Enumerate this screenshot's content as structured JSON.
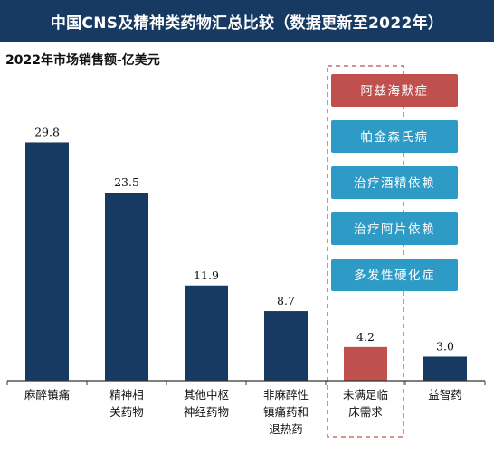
{
  "title": "中国CNS及精神类药物汇总比较（数据更新至2022年）",
  "subtitle": "2022年市场销售额-亿美元",
  "colors": {
    "header_bg": "#173a62",
    "bar": "#173a62",
    "highlight_bar": "#c0504d",
    "box_red": "#c0504d",
    "box_blue": "#2e9ac6",
    "dashed_border": "#c0504d",
    "axis": "#333333"
  },
  "chart_data": {
    "type": "bar",
    "title": "中国CNS及精神类药物汇总比较（数据更新至2022年）",
    "ylabel": "2022年市场销售额-亿美元",
    "categories": [
      [
        "麻醉镇痛"
      ],
      [
        "精神相",
        "关药物"
      ],
      [
        "其他中枢",
        "神经药物"
      ],
      [
        "非麻醉性",
        "镇痛药和",
        "退热药"
      ],
      [
        "未满足临",
        "床需求"
      ],
      [
        "益智药"
      ]
    ],
    "values": [
      29.8,
      23.5,
      11.9,
      8.7,
      4.2,
      3.0
    ],
    "value_labels": [
      "29.8",
      "23.5",
      "11.9",
      "8.7",
      "4.2",
      "3.0"
    ],
    "highlight_index": 4,
    "ylim": [
      0,
      32
    ],
    "grid": false,
    "annotation_boxes": [
      {
        "text": "阿兹海默症",
        "color": "#c0504d"
      },
      {
        "text": "帕金森氏病",
        "color": "#2e9ac6"
      },
      {
        "text": "治疗酒精依赖",
        "color": "#2e9ac6"
      },
      {
        "text": "治疗阿片依赖",
        "color": "#2e9ac6"
      },
      {
        "text": "多发性硬化症",
        "color": "#2e9ac6"
      }
    ]
  }
}
